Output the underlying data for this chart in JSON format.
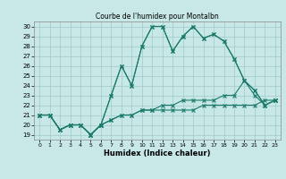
{
  "title": "Courbe de l'humidex pour Montalbn",
  "xlabel": "Humidex (Indice chaleur)",
  "bg_color": "#c8e8e8",
  "grid_color": "#a0c8c8",
  "line_color": "#1a7a6a",
  "xlim": [
    -0.5,
    23.5
  ],
  "ylim": [
    18.5,
    30.5
  ],
  "xticks": [
    0,
    1,
    2,
    3,
    4,
    5,
    6,
    7,
    8,
    9,
    10,
    11,
    12,
    13,
    14,
    15,
    16,
    17,
    18,
    19,
    20,
    21,
    22,
    23
  ],
  "yticks": [
    19,
    20,
    21,
    22,
    23,
    24,
    25,
    26,
    27,
    28,
    29,
    30
  ],
  "s1": [
    21,
    21,
    19.5,
    20,
    20,
    19,
    20,
    20.5,
    21,
    21,
    21.5,
    21.5,
    21.5,
    21.5,
    21.5,
    21.5,
    22,
    22,
    22,
    22,
    22,
    22,
    22.5,
    22.5
  ],
  "s2": [
    21,
    21,
    19.5,
    20,
    20,
    19,
    20,
    20.5,
    21,
    21,
    21.5,
    21.5,
    22,
    22,
    22.5,
    22.5,
    22.5,
    22.5,
    23,
    23,
    24.5,
    23,
    22,
    22.5
  ],
  "s3": [
    21,
    21,
    19.5,
    20,
    20,
    19,
    20,
    23,
    26,
    24,
    28,
    30,
    30,
    27.5,
    29,
    30,
    28.8,
    29.2,
    28.5,
    26.7,
    24.5,
    23.5,
    22,
    22.5
  ],
  "s4": [
    21,
    21,
    19.5,
    20,
    20,
    19,
    20,
    23,
    26,
    24,
    28,
    30,
    30,
    27.5,
    29,
    30,
    28.8,
    29.2,
    28.5,
    26.7,
    24.5,
    23.5,
    22,
    22.5
  ]
}
